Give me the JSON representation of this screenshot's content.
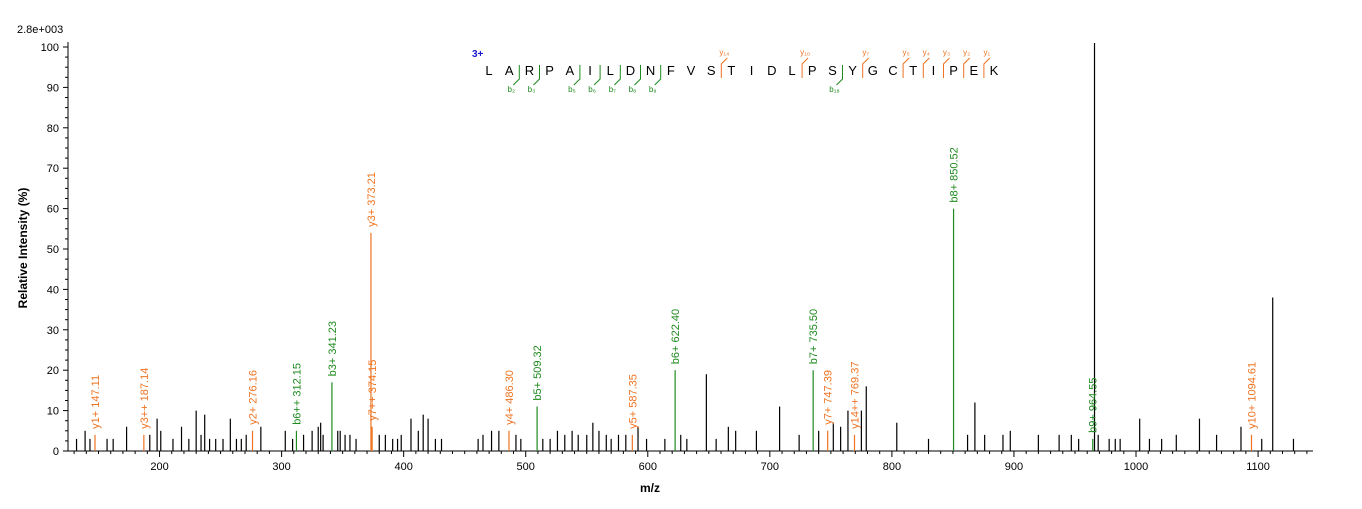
{
  "chart_data": {
    "type": "bar",
    "max_intensity_label": "2.8e+003",
    "xlabel": "m/z",
    "ylabel": "Relative  Intensity (%)",
    "xlim": [
      125,
      1145
    ],
    "ylim": [
      0,
      100
    ],
    "x_ticks": [
      100,
      200,
      300,
      400,
      500,
      600,
      700,
      800,
      900,
      1000,
      1100
    ],
    "y_ticks": [
      0,
      10,
      20,
      30,
      40,
      50,
      60,
      70,
      80,
      90,
      100
    ],
    "colors": {
      "unassigned": "#000000",
      "y_ion": "#ee7322",
      "b_ion": "#1f8a1f",
      "charge": "#1a1acc"
    },
    "series": [
      {
        "name": "peaks",
        "peaks": [
          {
            "x": 132,
            "y": 3
          },
          {
            "x": 139,
            "y": 5
          },
          {
            "x": 143,
            "y": 3
          },
          {
            "x": 147.11,
            "y": 4,
            "ion": "y",
            "label": "y1+ 147.11"
          },
          {
            "x": 157,
            "y": 3
          },
          {
            "x": 162,
            "y": 3
          },
          {
            "x": 173,
            "y": 6
          },
          {
            "x": 187.14,
            "y": 4,
            "ion": "y",
            "label": "y3++ 187.14"
          },
          {
            "x": 192,
            "y": 4
          },
          {
            "x": 198,
            "y": 8
          },
          {
            "x": 201,
            "y": 5
          },
          {
            "x": 211,
            "y": 3
          },
          {
            "x": 218,
            "y": 6
          },
          {
            "x": 224,
            "y": 3
          },
          {
            "x": 230,
            "y": 10
          },
          {
            "x": 234,
            "y": 4
          },
          {
            "x": 237,
            "y": 9
          },
          {
            "x": 241,
            "y": 3
          },
          {
            "x": 246,
            "y": 3
          },
          {
            "x": 252,
            "y": 3
          },
          {
            "x": 258,
            "y": 8
          },
          {
            "x": 263,
            "y": 3
          },
          {
            "x": 267,
            "y": 3
          },
          {
            "x": 271,
            "y": 4
          },
          {
            "x": 276.16,
            "y": 5,
            "ion": "y",
            "label": "y2+ 276.16"
          },
          {
            "x": 283,
            "y": 6
          },
          {
            "x": 303,
            "y": 5
          },
          {
            "x": 309,
            "y": 3
          },
          {
            "x": 312.15,
            "y": 5,
            "ion": "b",
            "label": "b6++ 312.15"
          },
          {
            "x": 318,
            "y": 4
          },
          {
            "x": 325,
            "y": 5
          },
          {
            "x": 330,
            "y": 6
          },
          {
            "x": 332,
            "y": 7
          },
          {
            "x": 334,
            "y": 4
          },
          {
            "x": 341.23,
            "y": 17,
            "ion": "b",
            "label": "b3+ 341.23"
          },
          {
            "x": 346,
            "y": 5
          },
          {
            "x": 348,
            "y": 5
          },
          {
            "x": 352,
            "y": 4
          },
          {
            "x": 356,
            "y": 4
          },
          {
            "x": 361,
            "y": 3
          },
          {
            "x": 373.21,
            "y": 54,
            "ion": "y",
            "label": "y3+ 373.21"
          },
          {
            "x": 374.15,
            "y": 6,
            "ion": "y",
            "label": "y7++ 374.15"
          },
          {
            "x": 380,
            "y": 4
          },
          {
            "x": 385,
            "y": 4
          },
          {
            "x": 391,
            "y": 3
          },
          {
            "x": 395,
            "y": 3
          },
          {
            "x": 398,
            "y": 4
          },
          {
            "x": 406,
            "y": 8
          },
          {
            "x": 412,
            "y": 5
          },
          {
            "x": 416,
            "y": 9
          },
          {
            "x": 420,
            "y": 8
          },
          {
            "x": 426,
            "y": 3
          },
          {
            "x": 431,
            "y": 3
          },
          {
            "x": 461,
            "y": 3
          },
          {
            "x": 465,
            "y": 4
          },
          {
            "x": 472,
            "y": 5
          },
          {
            "x": 478,
            "y": 5
          },
          {
            "x": 486.3,
            "y": 5,
            "ion": "y",
            "label": "y4+ 486.30"
          },
          {
            "x": 492,
            "y": 4
          },
          {
            "x": 496,
            "y": 3
          },
          {
            "x": 509.32,
            "y": 11,
            "ion": "b",
            "label": "b5+ 509.32"
          },
          {
            "x": 514,
            "y": 3
          },
          {
            "x": 520,
            "y": 3
          },
          {
            "x": 526,
            "y": 5
          },
          {
            "x": 532,
            "y": 4
          },
          {
            "x": 538,
            "y": 5
          },
          {
            "x": 543,
            "y": 4
          },
          {
            "x": 550,
            "y": 4
          },
          {
            "x": 555,
            "y": 7
          },
          {
            "x": 560,
            "y": 5
          },
          {
            "x": 566,
            "y": 4
          },
          {
            "x": 570,
            "y": 3
          },
          {
            "x": 576,
            "y": 4
          },
          {
            "x": 582,
            "y": 4
          },
          {
            "x": 587.35,
            "y": 4,
            "ion": "y",
            "label": "y5+ 587.35"
          },
          {
            "x": 592,
            "y": 6
          },
          {
            "x": 599,
            "y": 3
          },
          {
            "x": 614,
            "y": 3
          },
          {
            "x": 622.4,
            "y": 20,
            "ion": "b",
            "label": "b6+ 622.40"
          },
          {
            "x": 627,
            "y": 4
          },
          {
            "x": 632,
            "y": 3
          },
          {
            "x": 648,
            "y": 19
          },
          {
            "x": 656,
            "y": 3
          },
          {
            "x": 666,
            "y": 6
          },
          {
            "x": 672,
            "y": 5
          },
          {
            "x": 689,
            "y": 5
          },
          {
            "x": 708,
            "y": 11
          },
          {
            "x": 724,
            "y": 4
          },
          {
            "x": 735.5,
            "y": 20,
            "ion": "b",
            "label": "b7+ 735.50"
          },
          {
            "x": 740,
            "y": 5
          },
          {
            "x": 747.39,
            "y": 5,
            "ion": "y",
            "label": "y7+ 747.39"
          },
          {
            "x": 752,
            "y": 7
          },
          {
            "x": 758,
            "y": 6
          },
          {
            "x": 764,
            "y": 10
          },
          {
            "x": 769.37,
            "y": 4,
            "ion": "y",
            "label": "y14++ 769.37"
          },
          {
            "x": 775,
            "y": 10
          },
          {
            "x": 779,
            "y": 16
          },
          {
            "x": 804,
            "y": 7
          },
          {
            "x": 830,
            "y": 3
          },
          {
            "x": 850.52,
            "y": 60,
            "ion": "b",
            "label": "b8+ 850.52"
          },
          {
            "x": 862,
            "y": 4
          },
          {
            "x": 868,
            "y": 12
          },
          {
            "x": 876,
            "y": 4
          },
          {
            "x": 891,
            "y": 4
          },
          {
            "x": 897,
            "y": 5
          },
          {
            "x": 920,
            "y": 4
          },
          {
            "x": 937,
            "y": 4
          },
          {
            "x": 947,
            "y": 4
          },
          {
            "x": 953,
            "y": 3
          },
          {
            "x": 964.55,
            "y": 3,
            "ion": "b",
            "label": "b9+ 964.55"
          },
          {
            "x": 966,
            "y": 101
          },
          {
            "x": 969,
            "y": 4
          },
          {
            "x": 978,
            "y": 3
          },
          {
            "x": 983,
            "y": 3
          },
          {
            "x": 987,
            "y": 3
          },
          {
            "x": 1003,
            "y": 8
          },
          {
            "x": 1011,
            "y": 3
          },
          {
            "x": 1021,
            "y": 3
          },
          {
            "x": 1033,
            "y": 4
          },
          {
            "x": 1052,
            "y": 8
          },
          {
            "x": 1066,
            "y": 4
          },
          {
            "x": 1086,
            "y": 6
          },
          {
            "x": 1094.61,
            "y": 4,
            "ion": "y",
            "label": "y10+ 1094.61"
          },
          {
            "x": 1103,
            "y": 3
          },
          {
            "x": 1112,
            "y": 38
          },
          {
            "x": 1129,
            "y": 3
          }
        ]
      }
    ],
    "sequence": {
      "charge": "3+",
      "residues": [
        "L",
        "A",
        "R",
        "P",
        "A",
        "I",
        "L",
        "D",
        "N",
        "F",
        "V",
        "S",
        "T",
        "I",
        "D",
        "L",
        "P",
        "S",
        "Y",
        "G",
        "C",
        "T",
        "I",
        "P",
        "E",
        "K"
      ],
      "b_ions": [
        {
          "after": 2,
          "label": "b₂"
        },
        {
          "after": 3,
          "label": "b₃"
        },
        {
          "after": 5,
          "label": "b₅"
        },
        {
          "after": 6,
          "label": "b₆"
        },
        {
          "after": 7,
          "label": "b₇"
        },
        {
          "after": 8,
          "label": "b₈"
        },
        {
          "after": 9,
          "label": "b₉"
        },
        {
          "after": 18,
          "label": "b₁₈"
        }
      ],
      "y_ions": [
        {
          "after": 12,
          "label": "y₁₄"
        },
        {
          "after": 16,
          "label": "y₁₀"
        },
        {
          "after": 19,
          "label": "y₇"
        },
        {
          "after": 21,
          "label": "y₅"
        },
        {
          "after": 22,
          "label": "y₄"
        },
        {
          "after": 23,
          "label": "y₃"
        },
        {
          "after": 24,
          "label": "y₂"
        },
        {
          "after": 25,
          "label": "y₁"
        }
      ]
    }
  }
}
